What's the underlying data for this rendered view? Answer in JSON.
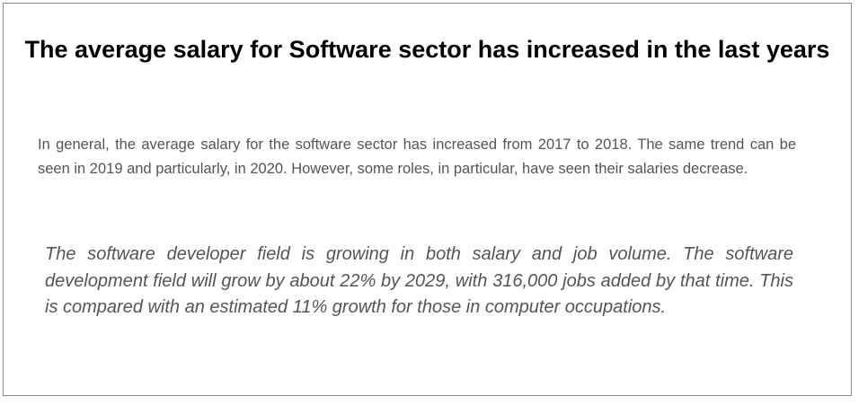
{
  "title": "The average salary for Software sector has increased in the last years",
  "summary": "In general, the average salary for the software sector has increased from 2017 to 2018. The same trend can be seen in 2019 and particularly, in 2020. However, some roles, in particular, have seen their salaries decrease.",
  "quote": "The software developer field is growing in both salary and job volume. The software development field will grow by about 22% by 2029, with 316,000 jobs added by that time. This is compared with an estimated 11% growth for those in computer occupations."
}
